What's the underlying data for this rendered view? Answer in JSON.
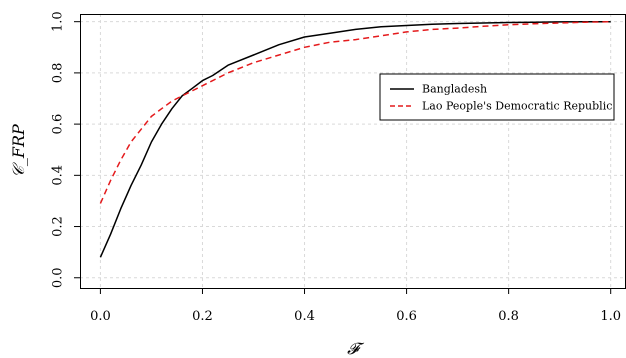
{
  "chart_data": {
    "type": "line",
    "xlabel": "𝓕",
    "ylabel": "𝒞_FRP",
    "xlim": [
      -0.04,
      1.03
    ],
    "ylim": [
      -0.04,
      1.03
    ],
    "xticks": [
      "0.0",
      "0.2",
      "0.4",
      "0.6",
      "0.8",
      "1.0"
    ],
    "yticks": [
      "0.0",
      "0.2",
      "0.4",
      "0.6",
      "0.8",
      "1.0"
    ],
    "grid": true,
    "legend_position": "right",
    "series": [
      {
        "name": "Bangladesh",
        "color": "#000000",
        "style": "solid",
        "x": [
          0.0,
          0.02,
          0.04,
          0.06,
          0.08,
          0.1,
          0.12,
          0.14,
          0.16,
          0.18,
          0.2,
          0.22,
          0.25,
          0.3,
          0.35,
          0.4,
          0.45,
          0.5,
          0.55,
          0.6,
          0.65,
          0.7,
          0.75,
          0.8,
          0.85,
          0.9,
          0.95,
          1.0
        ],
        "y": [
          0.08,
          0.17,
          0.27,
          0.36,
          0.44,
          0.53,
          0.6,
          0.66,
          0.71,
          0.74,
          0.77,
          0.79,
          0.83,
          0.87,
          0.91,
          0.94,
          0.955,
          0.97,
          0.98,
          0.985,
          0.99,
          0.993,
          0.995,
          0.997,
          0.998,
          0.999,
          1.0,
          1.0
        ]
      },
      {
        "name": "Lao People's Democratic Republic",
        "color": "#e41a1c",
        "style": "dashed",
        "x": [
          0.0,
          0.02,
          0.04,
          0.06,
          0.08,
          0.1,
          0.12,
          0.14,
          0.16,
          0.18,
          0.2,
          0.25,
          0.3,
          0.35,
          0.4,
          0.45,
          0.5,
          0.55,
          0.6,
          0.65,
          0.7,
          0.75,
          0.8,
          0.85,
          0.9,
          0.95,
          1.0
        ],
        "y": [
          0.29,
          0.38,
          0.46,
          0.53,
          0.58,
          0.63,
          0.66,
          0.69,
          0.71,
          0.73,
          0.75,
          0.8,
          0.84,
          0.87,
          0.9,
          0.92,
          0.93,
          0.945,
          0.96,
          0.97,
          0.975,
          0.982,
          0.988,
          0.992,
          0.995,
          0.998,
          1.0
        ]
      }
    ]
  }
}
